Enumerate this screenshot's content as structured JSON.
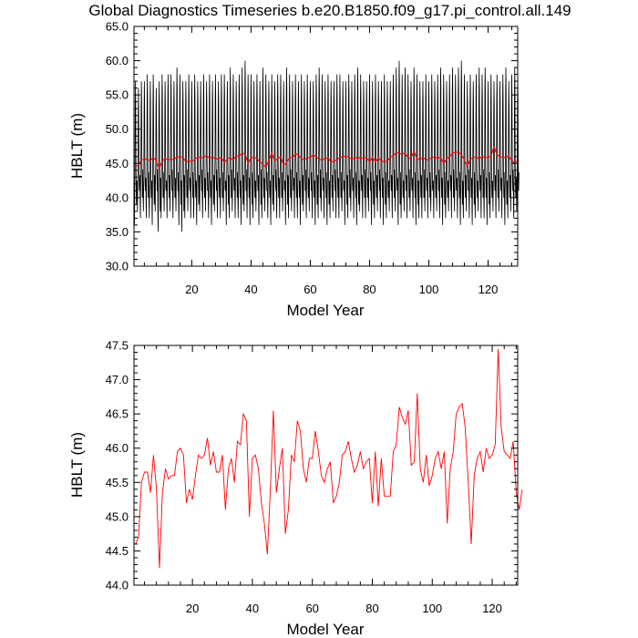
{
  "page": {
    "title": "Global Diagnostics Timeseries b.e20.B1850.f09_g17.pi_control.all.149"
  },
  "colors": {
    "monthly": "#000000",
    "annual": "#ff0000",
    "axes": "#000000"
  },
  "chart_data": [
    {
      "type": "line",
      "xlabel": "Model Year",
      "ylabel": "HBLT (m)",
      "xlim": [
        0.5,
        130.0
      ],
      "ylim": [
        30.0,
        65.0
      ],
      "xticks": [
        20,
        40,
        60,
        80,
        100,
        120
      ],
      "xtick_labels": [
        "20",
        "40",
        "60",
        "80",
        "100",
        "120"
      ],
      "yticks": [
        30.0,
        35.0,
        40.0,
        45.0,
        50.0,
        55.0,
        60.0,
        65.0
      ],
      "ytick_labels": [
        "30.0",
        "35.0",
        "40.0",
        "45.0",
        "50.0",
        "55.0",
        "60.0",
        "65.0"
      ],
      "grid": false,
      "series": [
        {
          "kind": "monthly",
          "color": "#000000",
          "annual_max": [
            57,
            56,
            57,
            57,
            58,
            57,
            58,
            56,
            57,
            58,
            57,
            58,
            58,
            57,
            59,
            58,
            57,
            57,
            58,
            57,
            58,
            57,
            57,
            58,
            57,
            58,
            57,
            58,
            57,
            58,
            58,
            57,
            59,
            58,
            57,
            58,
            59,
            60,
            58,
            58,
            57,
            58,
            57,
            59,
            58,
            57,
            58,
            57,
            58,
            58,
            57,
            59,
            58,
            57,
            58,
            57,
            58,
            57,
            58,
            57,
            57,
            58,
            59,
            58,
            57,
            58,
            57,
            57,
            58,
            58,
            57,
            57,
            58,
            57,
            58,
            59,
            58,
            57,
            57,
            58,
            57,
            58,
            57,
            57,
            58,
            57,
            57,
            58,
            59,
            60,
            58,
            59,
            58,
            57,
            59,
            58,
            57,
            57,
            58,
            57,
            58,
            57,
            58,
            59,
            58,
            57,
            58,
            59,
            58,
            59,
            60,
            58,
            57,
            58,
            57,
            58,
            59,
            58,
            59,
            57,
            58,
            57,
            58,
            57,
            58,
            59,
            57,
            58,
            59,
            58
          ],
          "annual_min": [
            36,
            38,
            37,
            38,
            37,
            37,
            36,
            38,
            35,
            37,
            38,
            37,
            38,
            37,
            38,
            36,
            35,
            37,
            38,
            37,
            37,
            36,
            38,
            37,
            38,
            37,
            36,
            38,
            37,
            37,
            38,
            36,
            37,
            38,
            37,
            37,
            36,
            38,
            37,
            36,
            37,
            38,
            36,
            37,
            38,
            37,
            36,
            38,
            37,
            37,
            38,
            36,
            37,
            38,
            37,
            37,
            36,
            38,
            37,
            38,
            37,
            36,
            37,
            38,
            37,
            36,
            37,
            38,
            37,
            37,
            38,
            36,
            37,
            38,
            37,
            36,
            38,
            37,
            37,
            38,
            36,
            37,
            38,
            37,
            36,
            37,
            38,
            37,
            38,
            36,
            37,
            38,
            37,
            38,
            37,
            36,
            37,
            37,
            38,
            37,
            38,
            37,
            38,
            37,
            36,
            37,
            38,
            37,
            38,
            37,
            36,
            37,
            38,
            37,
            36,
            37,
            38,
            37,
            37,
            36,
            37,
            38,
            37,
            38,
            37,
            36,
            37,
            38,
            37,
            38
          ]
        },
        {
          "kind": "annual",
          "color": "#ff0000",
          "x_start": 1,
          "y": [
            44.6,
            44.7,
            45.5,
            45.65,
            45.65,
            45.35,
            45.9,
            45.4,
            44.25,
            45.35,
            45.7,
            45.55,
            45.6,
            45.6,
            45.95,
            46.0,
            45.9,
            45.2,
            45.4,
            45.25,
            45.6,
            45.9,
            45.85,
            45.9,
            46.15,
            45.75,
            45.95,
            45.65,
            45.65,
            45.9,
            45.1,
            45.7,
            45.85,
            45.5,
            46.1,
            46.05,
            46.5,
            46.4,
            45.0,
            45.85,
            45.9,
            45.7,
            45.2,
            44.9,
            44.45,
            45.4,
            46.55,
            45.35,
            45.7,
            46.0,
            44.75,
            45.1,
            45.9,
            45.8,
            46.4,
            46.25,
            45.7,
            45.5,
            45.85,
            45.85,
            46.25,
            45.95,
            45.6,
            45.5,
            45.7,
            45.8,
            45.2,
            45.3,
            45.5,
            45.9,
            45.95,
            46.1,
            45.85,
            45.65,
            45.75,
            45.95,
            45.7,
            45.8,
            45.85,
            45.2,
            45.95,
            45.15,
            45.85,
            45.3,
            45.3,
            45.3,
            45.95,
            46.05,
            46.6,
            46.45,
            46.35,
            46.55,
            45.75,
            45.8,
            46.8,
            45.7,
            45.5,
            45.9,
            45.45,
            45.6,
            45.85,
            45.95,
            45.7,
            45.95,
            44.9,
            45.7,
            45.95,
            46.5,
            46.6,
            46.65,
            46.3,
            45.5,
            44.6,
            45.6,
            45.85,
            45.95,
            45.65,
            46.0,
            45.85,
            45.9,
            46.05,
            47.45,
            46.3,
            45.95,
            45.9,
            45.85,
            46.1,
            45.35,
            45.1,
            45.4
          ]
        }
      ]
    },
    {
      "type": "line",
      "xlabel": "Model Year",
      "ylabel": "HBLT (m)",
      "xlim": [
        0.5,
        128.5
      ],
      "ylim": [
        44.0,
        47.5
      ],
      "xticks": [
        20,
        40,
        60,
        80,
        100,
        120
      ],
      "xtick_labels": [
        "20",
        "40",
        "60",
        "80",
        "100",
        "120"
      ],
      "yticks": [
        44.0,
        44.5,
        45.0,
        45.5,
        46.0,
        46.5,
        47.0,
        47.5
      ],
      "ytick_labels": [
        "44.0",
        "44.5",
        "45.0",
        "45.5",
        "46.0",
        "46.5",
        "47.0",
        "47.5"
      ],
      "grid": false,
      "series": [
        {
          "kind": "annual",
          "color": "#ff0000",
          "x_start": 1,
          "y": [
            44.6,
            44.7,
            45.5,
            45.65,
            45.65,
            45.35,
            45.9,
            45.4,
            44.25,
            45.35,
            45.7,
            45.55,
            45.6,
            45.6,
            45.95,
            46.0,
            45.9,
            45.2,
            45.4,
            45.25,
            45.6,
            45.9,
            45.85,
            45.9,
            46.15,
            45.75,
            45.95,
            45.65,
            45.65,
            45.9,
            45.1,
            45.7,
            45.85,
            45.5,
            46.1,
            46.05,
            46.5,
            46.4,
            45.0,
            45.85,
            45.9,
            45.7,
            45.2,
            44.9,
            44.45,
            45.4,
            46.55,
            45.35,
            45.7,
            46.0,
            44.75,
            45.1,
            45.9,
            45.8,
            46.4,
            46.25,
            45.7,
            45.5,
            45.85,
            45.85,
            46.25,
            45.95,
            45.6,
            45.5,
            45.7,
            45.8,
            45.2,
            45.3,
            45.5,
            45.9,
            45.95,
            46.1,
            45.85,
            45.65,
            45.75,
            45.95,
            45.7,
            45.8,
            45.85,
            45.2,
            45.95,
            45.15,
            45.85,
            45.3,
            45.3,
            45.3,
            45.95,
            46.05,
            46.6,
            46.45,
            46.35,
            46.55,
            45.75,
            45.8,
            46.8,
            45.7,
            45.5,
            45.9,
            45.45,
            45.6,
            45.85,
            45.95,
            45.7,
            45.95,
            44.9,
            45.7,
            45.95,
            46.5,
            46.6,
            46.65,
            46.3,
            45.5,
            44.6,
            45.6,
            45.85,
            45.95,
            45.65,
            46.0,
            45.85,
            45.9,
            46.05,
            47.45,
            46.3,
            45.95,
            45.9,
            45.85,
            46.1,
            45.35,
            45.1,
            45.4
          ]
        }
      ]
    }
  ]
}
